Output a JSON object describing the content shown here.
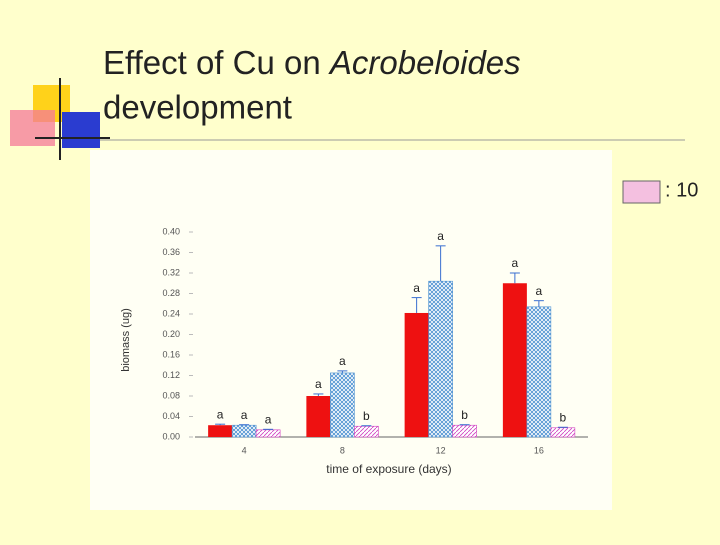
{
  "slide": {
    "title_parts": [
      "Effect of Cu on",
      "Acrobeloides",
      "development"
    ]
  },
  "chart_data": {
    "type": "bar",
    "xlabel": "time of exposure (days)",
    "ylabel": "biomass (ug)",
    "categories": [
      "4",
      "8",
      "12",
      "16"
    ],
    "series": [
      {
        "color": "#ee1111",
        "pattern": "solid",
        "values": [
          0.023,
          0.08,
          0.242,
          0.3
        ],
        "errors": [
          0.002,
          0.004,
          0.03,
          0.02
        ],
        "letters": [
          "a",
          "a",
          "a",
          "a"
        ]
      },
      {
        "color": "#4a90d0",
        "pattern": "crosshatch",
        "values": [
          0.023,
          0.125,
          0.304,
          0.254
        ],
        "errors": [
          0.001,
          0.004,
          0.069,
          0.012
        ],
        "letters": [
          "a",
          "a",
          "a",
          "a"
        ]
      },
      {
        "name": ": 10",
        "color": "#d040c0",
        "pattern": "hatch",
        "values": [
          0.014,
          0.021,
          0.023,
          0.018
        ],
        "errors": [
          0.001,
          0.001,
          0.001,
          0.001
        ],
        "letters": [
          "a",
          "b",
          "b",
          "b"
        ]
      }
    ],
    "ylim": [
      0,
      0.4
    ],
    "yticks": [
      {
        "value": 0,
        "label": "0.00"
      },
      {
        "value": 0.04,
        "label": "0.04"
      },
      {
        "value": 0.08,
        "label": "0.08"
      },
      {
        "value": 0.12,
        "label": "0.12"
      },
      {
        "value": 0.16,
        "label": "0.16"
      },
      {
        "value": 0.2,
        "label": "0.20"
      },
      {
        "value": 0.24,
        "label": "0.24"
      },
      {
        "value": 0.28,
        "label": "0.28"
      },
      {
        "value": 0.32,
        "label": "0.32"
      },
      {
        "value": 0.36,
        "label": "0.36"
      },
      {
        "value": 0.4,
        "label": "0.40"
      }
    ]
  }
}
